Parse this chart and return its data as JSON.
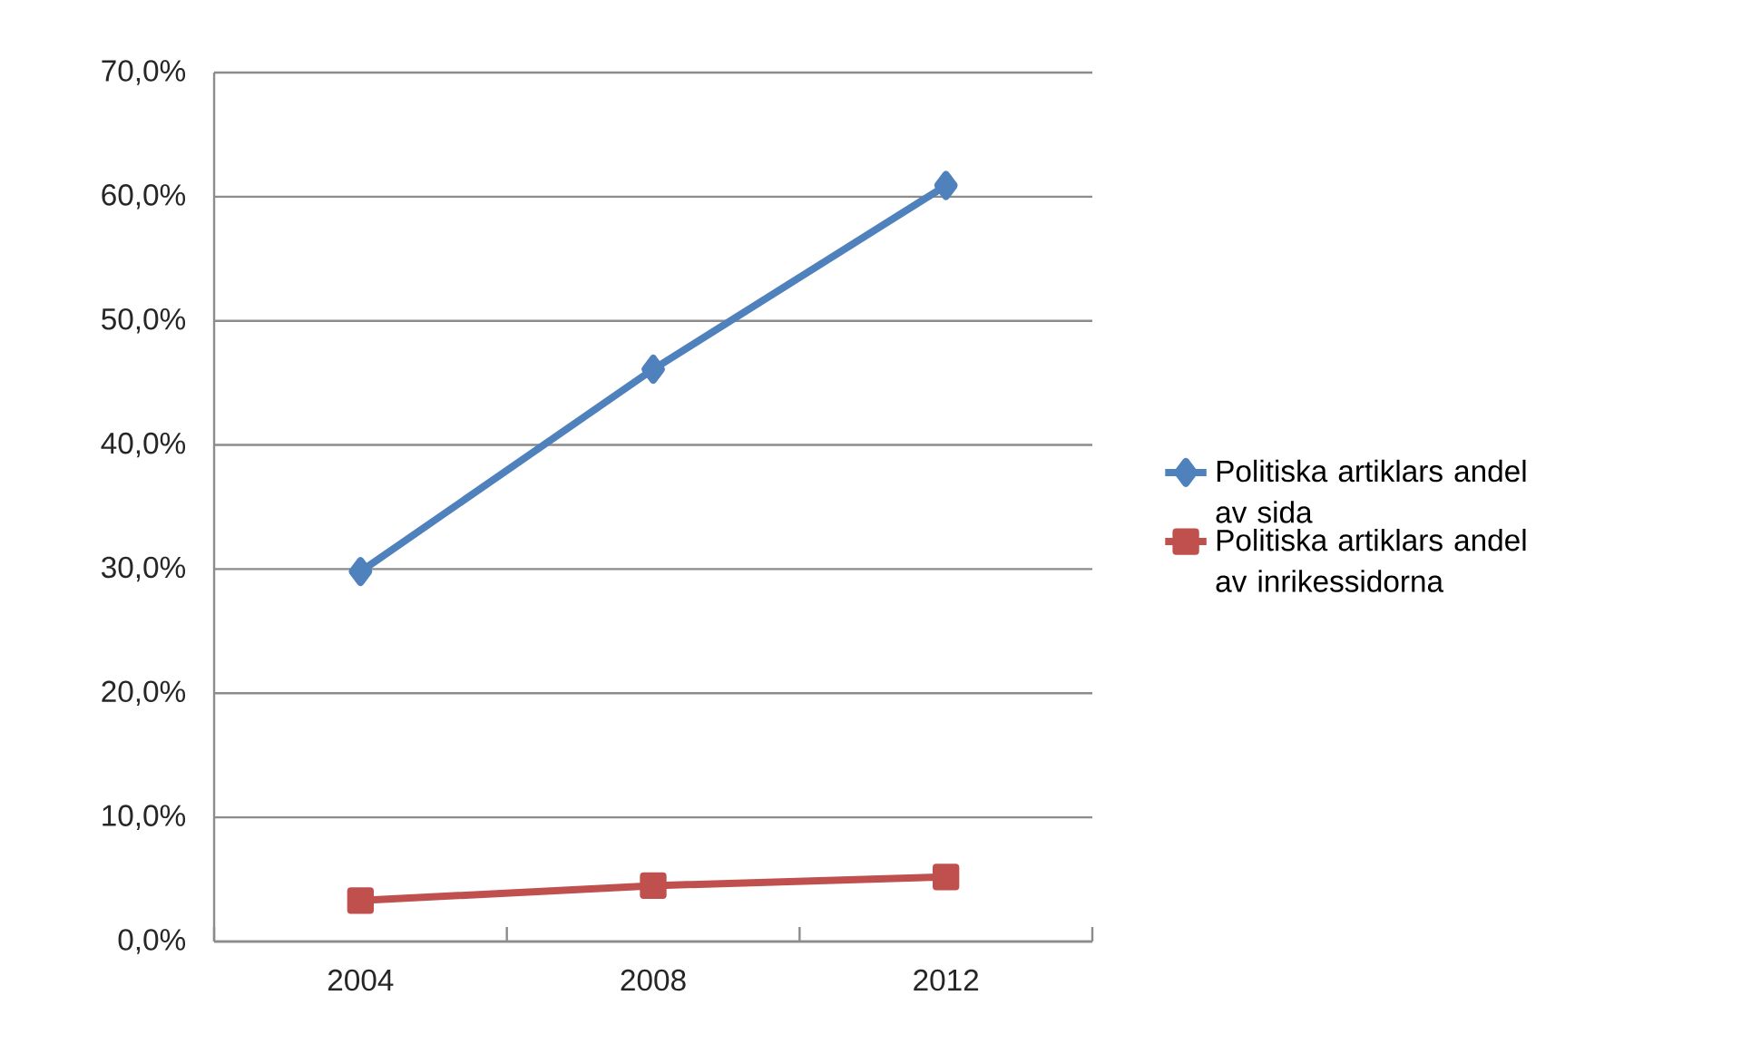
{
  "chart_data": {
    "type": "line",
    "categories": [
      "2004",
      "2008",
      "2012"
    ],
    "series": [
      {
        "name": "Politiska artiklars andel av sida",
        "color": "#4f81bd",
        "marker": "diamond",
        "values": [
          29.8,
          46.1,
          60.9
        ]
      },
      {
        "name": "Politiska artiklars andel av inrikessidorna",
        "color": "#c0504d",
        "marker": "square",
        "values": [
          3.3,
          4.5,
          5.2
        ]
      }
    ],
    "ylim": [
      0,
      70
    ],
    "yticks": [
      {
        "value": 0,
        "label": "0,0%"
      },
      {
        "value": 10,
        "label": "10,0%"
      },
      {
        "value": 20,
        "label": "20,0%"
      },
      {
        "value": 30,
        "label": "30,0%"
      },
      {
        "value": 40,
        "label": "40,0%"
      },
      {
        "value": 50,
        "label": "50,0%"
      },
      {
        "value": 60,
        "label": "60,0%"
      },
      {
        "value": 70,
        "label": "70,0%"
      }
    ],
    "grid": "y",
    "legend": "right",
    "line_style": "solid"
  }
}
